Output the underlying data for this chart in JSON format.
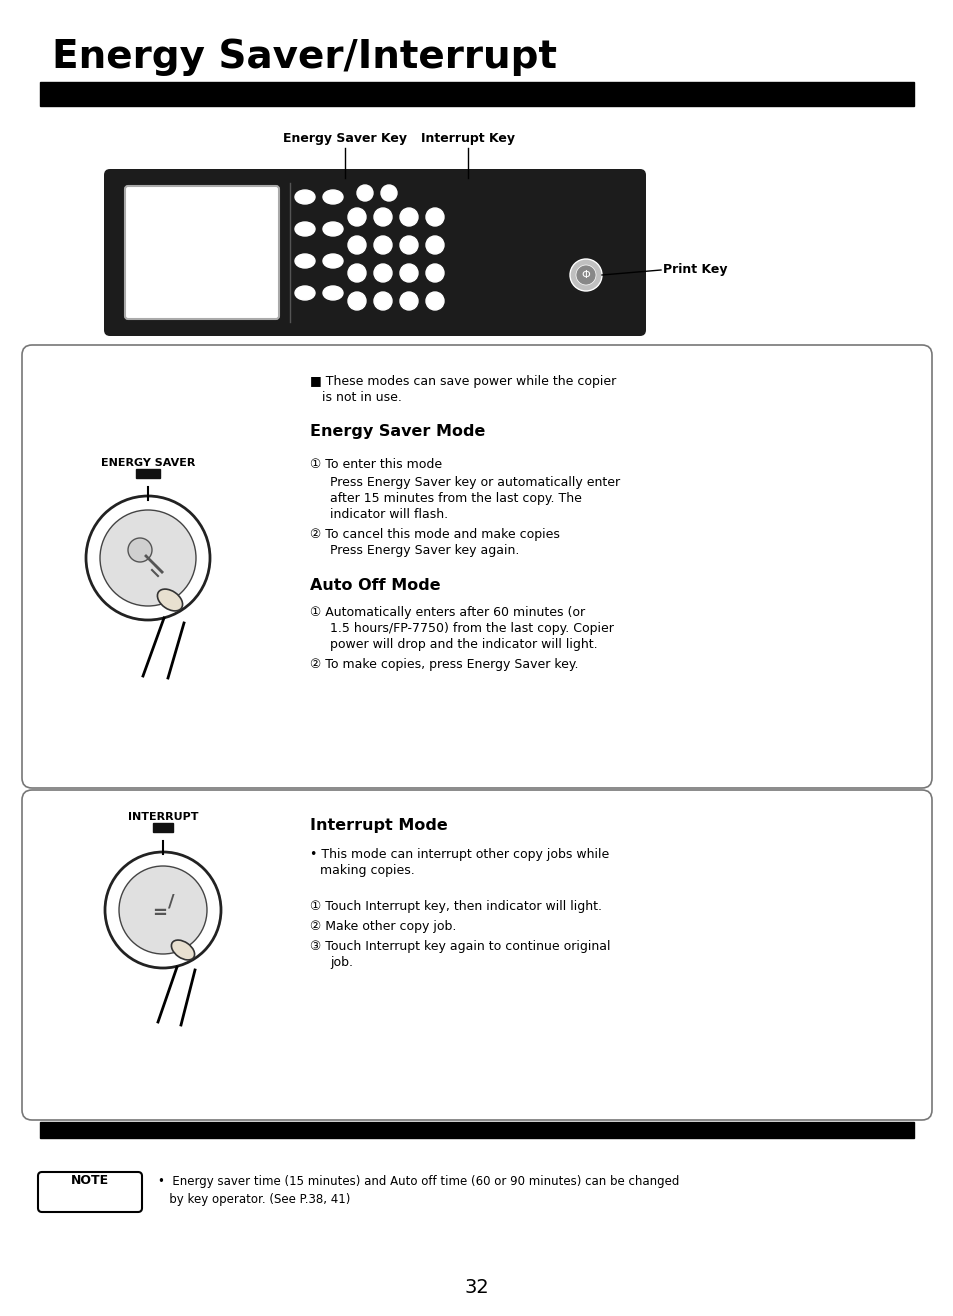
{
  "title": "Energy Saver/Interrupt",
  "page_number": "32",
  "bg_color": "#ffffff",
  "section1": {
    "energy_saver_label": "ENERGY SAVER",
    "bullet_intro_1": "■ These modes can save power while the copier",
    "bullet_intro_2": "is not in use.",
    "energy_saver_mode_title": "Energy Saver Mode",
    "s1_step1_header": "① To enter this mode",
    "s1_step1_line1": "Press Energy Saver key or automatically enter",
    "s1_step1_line2": "after 15 minutes from the last copy. The",
    "s1_step1_line3": "indicator will flash.",
    "s1_step2_line1": "② To cancel this mode and make copies",
    "s1_step2_line2": "Press Energy Saver key again.",
    "auto_off_title": "Auto Off Mode",
    "ao_step1_line1": "① Automatically enters after 60 minutes (or",
    "ao_step1_line2": "1.5 hours/FP-7750) from the last copy. Copier",
    "ao_step1_line3": "power will drop and the indicator will light.",
    "ao_step2": "② To make copies, press Energy Saver key."
  },
  "section2": {
    "interrupt_label": "INTERRUPT",
    "interrupt_mode_title": "Interrupt Mode",
    "bullet_line1": "• This mode can interrupt other copy jobs while",
    "bullet_line2": "making copies.",
    "step1": "① Touch Interrupt key, then indicator will light.",
    "step2": "② Make other copy job.",
    "step3_line1": "③ Touch Interrupt key again to continue original",
    "step3_line2": "job."
  },
  "diagram_labels": {
    "energy_saver_key": "Energy Saver Key",
    "interrupt_key": "Interrupt Key",
    "print_key": "Print Key"
  },
  "note_label": "NOTE",
  "note_text1": "•  Energy saver time (15 minutes) and Auto off time (60 or 90 minutes) can be changed",
  "note_text2": "   by key operator. (See P.38, 41)"
}
